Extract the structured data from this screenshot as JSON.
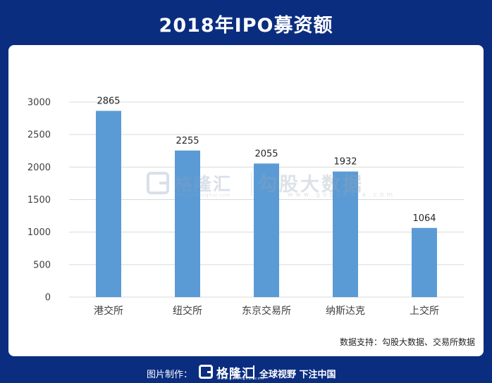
{
  "title": "2018年IPO募资额",
  "chart_data": {
    "type": "bar",
    "categories": [
      "港交所",
      "纽交所",
      "东京交易所",
      "纳斯达克",
      "上交所"
    ],
    "values": [
      2865,
      2255,
      2055,
      1932,
      1064
    ],
    "data_labels": [
      "2865",
      "2255",
      "2055",
      "1932",
      "1064"
    ],
    "yticks": [
      0,
      500,
      1000,
      1500,
      2000,
      2500,
      3000
    ],
    "ylim": [
      0,
      3000
    ],
    "grid": true,
    "bar_color": "#5b9bd5",
    "title": "",
    "xlabel": "",
    "ylabel": ""
  },
  "watermark": {
    "brand": "格隆汇",
    "brand_url": "www.gelonghui.com",
    "partner": "勾股大数据",
    "partner_url": "www.gogudata.com"
  },
  "source": "数据支持：勾股大数据、交易所数据",
  "footer": {
    "made_by": "图片制作：",
    "logo": "格隆汇",
    "logo_url": "www.gelonghui.com",
    "slogan": "全球视野 下注中国"
  },
  "colors": {
    "background": "#0a2d80",
    "panel": "#ffffff",
    "bar": "#5b9bd5",
    "grid": "#d9d9d9"
  }
}
